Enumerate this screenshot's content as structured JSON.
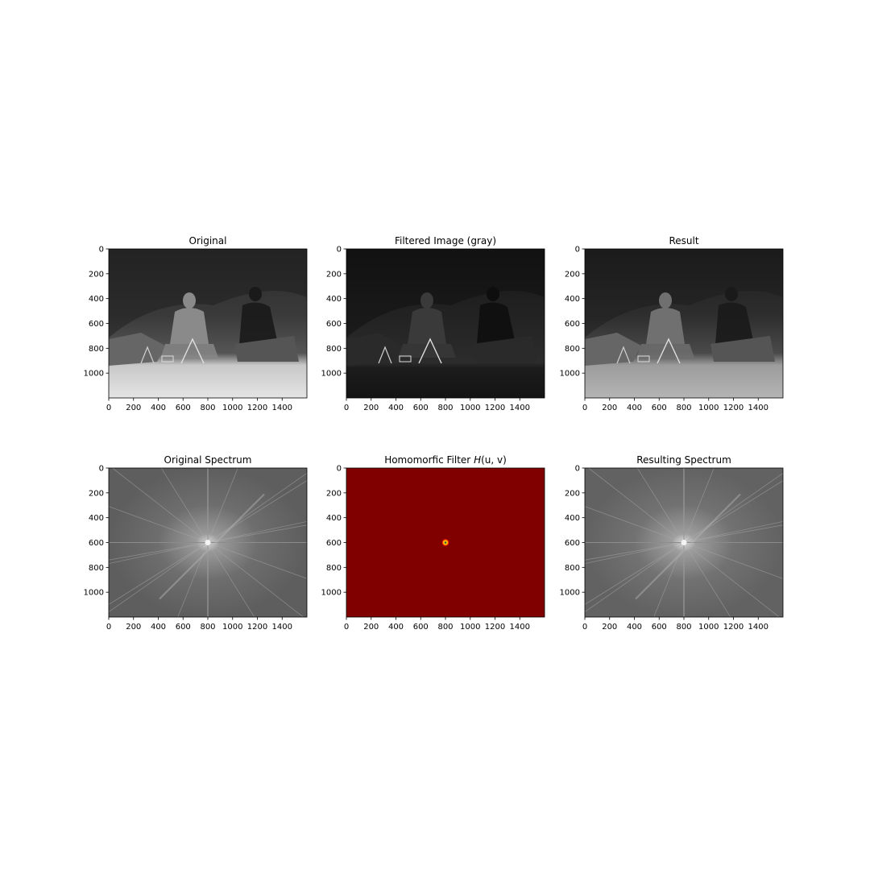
{
  "figure": {
    "panels": [
      {
        "title": "Original",
        "kind": "photo",
        "variant": "original"
      },
      {
        "title": "Filtered Image (gray)",
        "kind": "photo",
        "variant": "filtered"
      },
      {
        "title": "Result",
        "kind": "photo",
        "variant": "result"
      },
      {
        "title": "Original Spectrum",
        "kind": "spectrum",
        "variant": "original"
      },
      {
        "title": "Homomorfic Filter H(u, v)",
        "kind": "filter",
        "variant": "filter"
      },
      {
        "title": "Resulting Spectrum",
        "kind": "spectrum",
        "variant": "result"
      }
    ]
  },
  "chart_data": [
    {
      "type": "heatmap",
      "title": "Original",
      "xlim": [
        0,
        1600
      ],
      "ylim": [
        1200,
        0
      ],
      "xticks": [
        0,
        200,
        400,
        600,
        800,
        1000,
        1200,
        1400
      ],
      "yticks": [
        0,
        200,
        400,
        600,
        800,
        1000
      ],
      "colormap": "gray"
    },
    {
      "type": "heatmap",
      "title": "Filtered Image (gray)",
      "xlim": [
        0,
        1600
      ],
      "ylim": [
        1200,
        0
      ],
      "xticks": [
        0,
        200,
        400,
        600,
        800,
        1000,
        1200,
        1400
      ],
      "yticks": [
        0,
        200,
        400,
        600,
        800,
        1000
      ],
      "colormap": "gray"
    },
    {
      "type": "heatmap",
      "title": "Result",
      "xlim": [
        0,
        1600
      ],
      "ylim": [
        1200,
        0
      ],
      "xticks": [
        0,
        200,
        400,
        600,
        800,
        1000,
        1200,
        1400
      ],
      "yticks": [
        0,
        200,
        400,
        600,
        800,
        1000
      ],
      "colormap": "gray"
    },
    {
      "type": "heatmap",
      "title": "Original Spectrum",
      "xlim": [
        0,
        1600
      ],
      "ylim": [
        1200,
        0
      ],
      "xticks": [
        0,
        200,
        400,
        600,
        800,
        1000,
        1200,
        1400
      ],
      "yticks": [
        0,
        200,
        400,
        600,
        800,
        1000
      ],
      "colormap": "gray",
      "center": [
        800,
        600
      ]
    },
    {
      "type": "heatmap",
      "title": "Homomorfic Filter H(u, v)",
      "xlim": [
        0,
        1600
      ],
      "ylim": [
        1200,
        0
      ],
      "xticks": [
        0,
        200,
        400,
        600,
        800,
        1000,
        1200,
        1400
      ],
      "yticks": [
        0,
        200,
        400,
        600,
        800,
        1000
      ],
      "colormap": "jet",
      "center": [
        800,
        600
      ],
      "colors": {
        "background": "#800000",
        "ring": "#ffcc00",
        "center": "#4a4a4a"
      }
    },
    {
      "type": "heatmap",
      "title": "Resulting Spectrum",
      "xlim": [
        0,
        1600
      ],
      "ylim": [
        1200,
        0
      ],
      "xticks": [
        0,
        200,
        400,
        600,
        800,
        1000,
        1200,
        1400
      ],
      "yticks": [
        0,
        200,
        400,
        600,
        800,
        1000
      ],
      "colormap": "gray",
      "center": [
        800,
        600
      ]
    }
  ]
}
